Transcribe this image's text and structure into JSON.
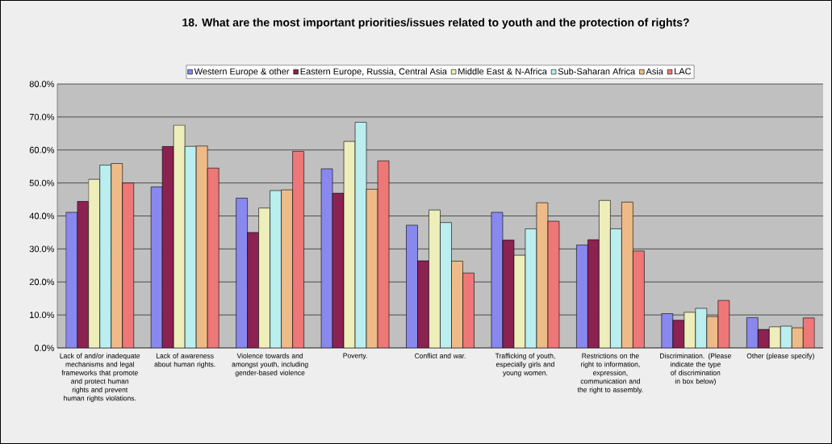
{
  "chart_data": {
    "type": "bar",
    "title": "18. What are the most important priorities/issues related to youth and the protection of rights?",
    "categories": [
      "Lack of and/or inadequate mechanisms and legal frameworks that promote and protect human rights and prevent human rights violations.",
      "Lack of awareness about human rights.",
      "Violence towards and amongst youth, including gender-based violence",
      "Poverty.",
      "Conflict and war.",
      "Trafficking of youth, especially girls and young women.",
      "Restrictions on the right to information, expression, communication and the right to assembly.",
      "Discrimination. (Please indicate the type of discrimination in box below)",
      "Other (please specify)"
    ],
    "series": [
      {
        "name": "Western Europe & other",
        "color": "#8888ee",
        "values": [
          41.1,
          48.8,
          45.4,
          54.3,
          37.2,
          41.1,
          31.2,
          10.4,
          9.2
        ]
      },
      {
        "name": "Eastern Europe, Russia, Central Asia",
        "color": "#8b2252",
        "values": [
          44.4,
          61.1,
          35.0,
          46.9,
          26.4,
          32.7,
          32.8,
          8.4,
          5.6
        ]
      },
      {
        "name": "Middle East & N-Africa",
        "color": "#eeeebb",
        "values": [
          51.1,
          67.5,
          42.4,
          62.6,
          41.8,
          28.1,
          44.7,
          10.8,
          6.4
        ]
      },
      {
        "name": "Sub-Saharan Africa",
        "color": "#bbeeee",
        "values": [
          55.4,
          61.1,
          47.7,
          68.4,
          38.0,
          36.1,
          36.1,
          12.0,
          6.6
        ]
      },
      {
        "name": "Asia",
        "color": "#eebb88",
        "values": [
          55.9,
          61.2,
          47.9,
          48.1,
          26.3,
          44.0,
          44.2,
          9.5,
          6.1
        ]
      },
      {
        "name": "LAC",
        "color": "#ee7777",
        "values": [
          50.0,
          54.5,
          59.6,
          56.7,
          22.7,
          38.4,
          29.4,
          14.4,
          9.1
        ]
      }
    ],
    "ylim": [
      0,
      80
    ],
    "yticks": [
      {
        "value": 0,
        "label": "0.0%"
      },
      {
        "value": 10,
        "label": "10.0%"
      },
      {
        "value": 20,
        "label": "20.0%"
      },
      {
        "value": 30,
        "label": "30.0%"
      },
      {
        "value": 40,
        "label": "40.0%"
      },
      {
        "value": 50,
        "label": "50.0%"
      },
      {
        "value": 60,
        "label": "60.0%"
      },
      {
        "value": 70,
        "label": "70.0%"
      },
      {
        "value": 80,
        "label": "80.0%"
      }
    ],
    "grid": "y",
    "legend": "top"
  }
}
